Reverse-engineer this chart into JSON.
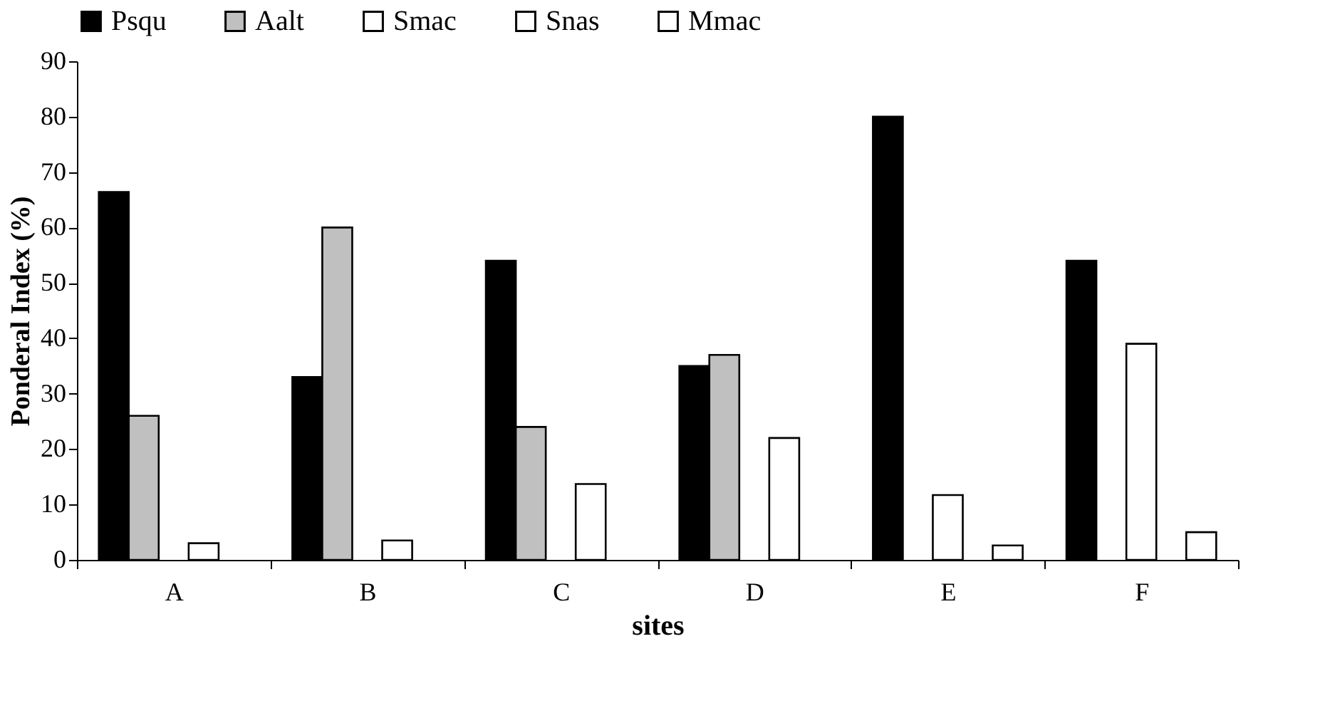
{
  "chart_data": {
    "type": "bar",
    "xlabel": "sites",
    "ylabel": "Ponderal Index (%)",
    "categories": [
      "A",
      "B",
      "C",
      "D",
      "E",
      "F"
    ],
    "series": [
      {
        "name": "Psqu",
        "color": "#000000",
        "values": [
          66.4,
          33,
          54,
          35,
          80,
          54
        ]
      },
      {
        "name": "Aalt",
        "color": "#c0c0c0",
        "values": [
          26,
          60,
          24,
          37,
          null,
          null
        ]
      },
      {
        "name": "Smac",
        "color": "#ffffff",
        "values": [
          null,
          null,
          null,
          null,
          11.7,
          39
        ]
      },
      {
        "name": "Snas",
        "color": "#ffffff",
        "values": [
          3,
          3.5,
          13.7,
          22,
          null,
          null
        ]
      },
      {
        "name": "Mmac",
        "color": "#ffffff",
        "values": [
          null,
          null,
          null,
          null,
          2.6,
          5
        ]
      }
    ],
    "ylim": [
      0,
      90
    ],
    "yticks": [
      0,
      10,
      20,
      30,
      40,
      50,
      60,
      70,
      80,
      90
    ],
    "grid": false,
    "legend": "top"
  }
}
